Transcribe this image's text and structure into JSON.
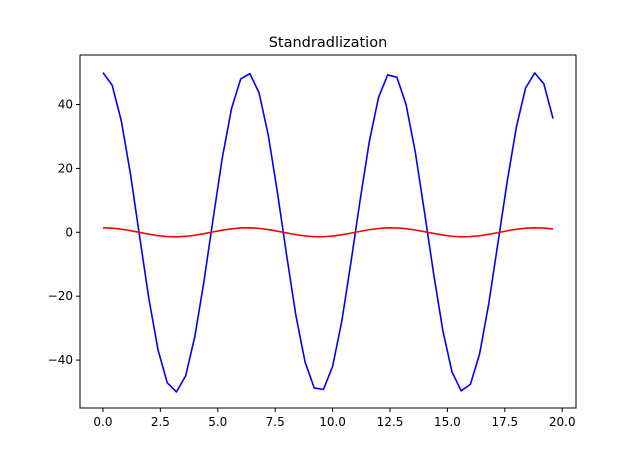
{
  "chart_data": {
    "type": "line",
    "title": "Standradlization",
    "xlabel": "",
    "ylabel": "",
    "xlim": [
      -1.0,
      20.6
    ],
    "ylim": [
      -55.0,
      55.5
    ],
    "grid": false,
    "x_ticks": [
      0.0,
      2.5,
      5.0,
      7.5,
      10.0,
      12.5,
      15.0,
      17.5,
      20.0
    ],
    "x_tick_labels": [
      "0.0",
      "2.5",
      "5.0",
      "7.5",
      "10.0",
      "12.5",
      "15.0",
      "17.5",
      "20.0"
    ],
    "y_ticks": [
      -40,
      -20,
      0,
      20,
      40
    ],
    "y_tick_labels": [
      "−40",
      "−20",
      "0",
      "20",
      "40"
    ],
    "x": [
      0.0,
      0.4,
      0.8,
      1.2,
      1.6,
      2.0,
      2.4,
      2.8,
      3.2,
      3.6,
      4.0,
      4.4,
      4.8,
      5.2,
      5.6,
      6.0,
      6.4,
      6.8,
      7.2,
      7.6,
      8.0,
      8.4,
      8.8,
      9.2,
      9.6,
      10.0,
      10.4,
      10.8,
      11.2,
      11.6,
      12.0,
      12.4,
      12.8,
      13.2,
      13.6,
      14.0,
      14.4,
      14.8,
      15.2,
      15.6,
      16.0,
      16.4,
      16.8,
      17.2,
      17.6,
      18.0,
      18.4,
      18.8,
      19.2,
      19.6
    ],
    "series": [
      {
        "color": "#0000ff",
        "values": [
          50.0,
          46.05,
          34.84,
          18.12,
          -1.46,
          -20.81,
          -36.87,
          -47.12,
          -49.96,
          -44.96,
          -32.68,
          -15.27,
          4.38,
          23.42,
          38.78,
          48.01,
          49.67,
          43.6,
          30.37,
          12.36,
          -7.28,
          -25.96,
          -40.57,
          -48.73,
          -49.21,
          -42.01,
          -27.85,
          -9.38,
          10.13,
          28.41,
          42.19,
          49.3,
          48.52,
          39.99,
          25.18,
          6.38,
          -12.96,
          -30.7,
          -43.72,
          -49.62,
          -47.61,
          -38.15,
          -22.37,
          -3.34,
          15.72,
          32.82,
          45.09,
          49.89,
          46.48,
          35.61
        ]
      },
      {
        "color": "#ff0000",
        "values": [
          1.414,
          1.302,
          0.985,
          0.512,
          -0.041,
          -0.589,
          -1.043,
          -1.333,
          -1.413,
          -1.272,
          -0.924,
          -0.432,
          0.124,
          0.662,
          1.097,
          1.358,
          1.405,
          1.233,
          0.859,
          0.35,
          -0.206,
          -0.734,
          -1.147,
          -1.378,
          -1.392,
          -1.188,
          -0.788,
          -0.265,
          0.287,
          0.803,
          1.193,
          1.394,
          1.372,
          1.131,
          0.712,
          0.18,
          -0.367,
          -0.868,
          -1.236,
          -1.403,
          -1.347,
          -1.079,
          -0.633,
          -0.094,
          0.445,
          0.928,
          1.275,
          1.411,
          1.315,
          1.007
        ]
      }
    ]
  }
}
